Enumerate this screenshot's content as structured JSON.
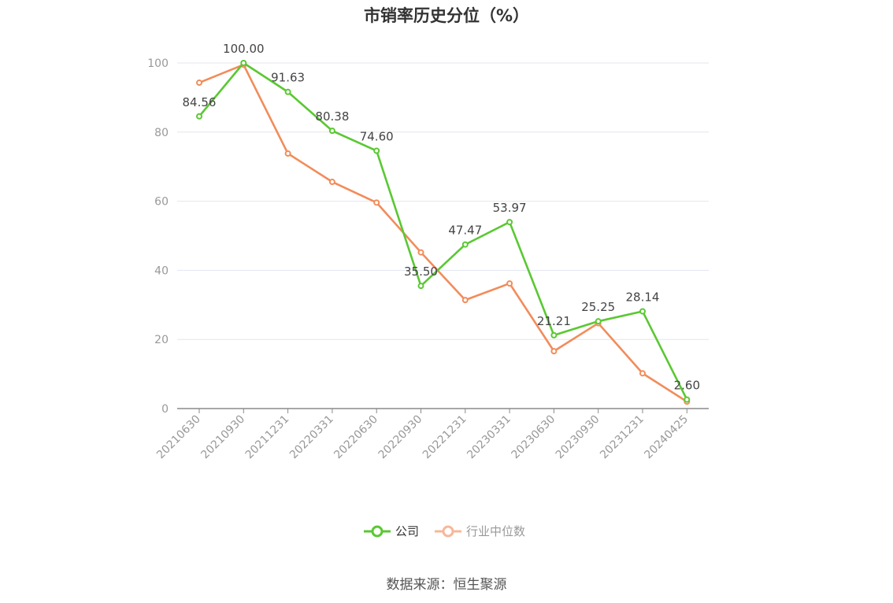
{
  "chart_data": {
    "type": "line",
    "title": "市销率历史分位（%）",
    "categories": [
      "20210630",
      "20210930",
      "20211231",
      "20220331",
      "20220630",
      "20220930",
      "20221231",
      "20230331",
      "20230630",
      "20230930",
      "20231231",
      "20240425"
    ],
    "series": [
      {
        "name": "公司",
        "color": "#5ac832",
        "values": [
          84.56,
          100.0,
          91.63,
          80.38,
          74.6,
          35.5,
          47.47,
          53.97,
          21.21,
          25.25,
          28.14,
          2.6
        ],
        "labels": [
          "84.56",
          "100.00",
          "91.63",
          "80.38",
          "74.60",
          "35.50",
          "47.47",
          "53.97",
          "21.21",
          "25.25",
          "28.14",
          "2.60"
        ]
      },
      {
        "name": "行业中位数",
        "color": "#f28c5a",
        "values": [
          94.3,
          99.5,
          73.8,
          65.6,
          59.6,
          45.2,
          31.4,
          36.2,
          16.6,
          24.7,
          10.2,
          2.0
        ]
      }
    ],
    "ylim": [
      0,
      100
    ],
    "yticks": [
      0,
      20,
      40,
      60,
      80,
      100
    ],
    "grid": true,
    "legend_position": "bottom"
  },
  "source_text": "数据来源：恒生聚源"
}
